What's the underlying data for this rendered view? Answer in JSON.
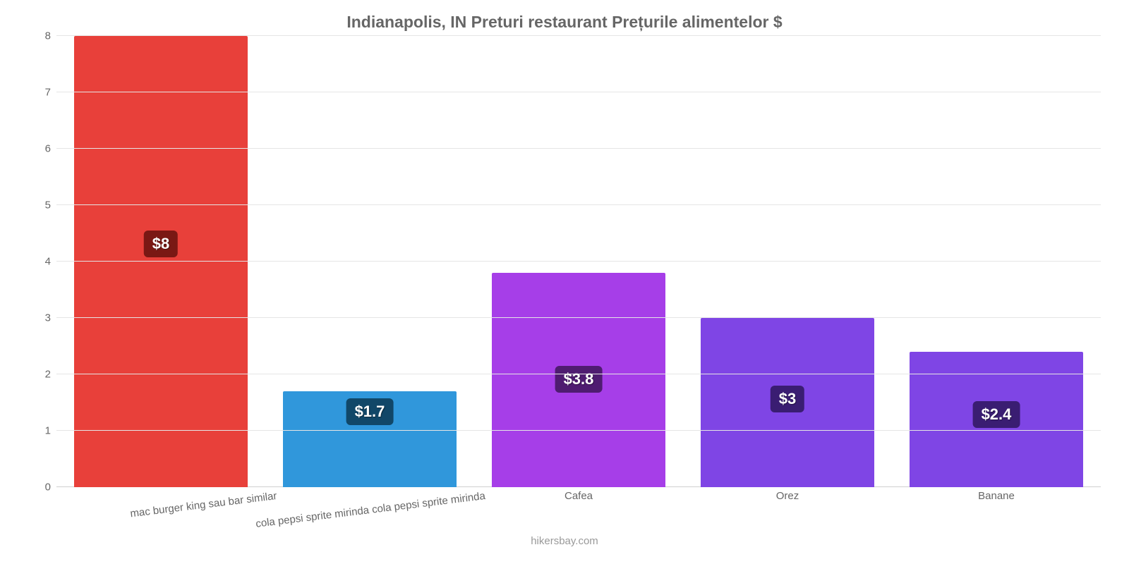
{
  "chart": {
    "type": "bar",
    "title": "Indianapolis, IN Preturi restaurant Prețurile alimentelor $",
    "title_fontsize": 23,
    "title_color": "#666666",
    "background_color": "#ffffff",
    "grid_color": "#e5e5e5",
    "axis_color": "#d0d0d0",
    "ylim_min": 0,
    "ylim_max": 8,
    "ytick_step": 1,
    "ytick_labels": [
      "0",
      "1",
      "2",
      "3",
      "4",
      "5",
      "6",
      "7",
      "8"
    ],
    "ytick_fontsize": 15,
    "x_label_fontsize": 15,
    "x_label_color": "#666666",
    "bar_width_pct": 83,
    "value_label_fontsize": 22,
    "categories": [
      {
        "label": "mac burger king sau bar similar",
        "rotated": true
      },
      {
        "label": "cola pepsi sprite mirinda cola pepsi sprite mirinda",
        "rotated": true
      },
      {
        "label": "Cafea",
        "rotated": false
      },
      {
        "label": "Orez",
        "rotated": false
      },
      {
        "label": "Banane",
        "rotated": false
      }
    ],
    "values": [
      8,
      1.7,
      3.8,
      3,
      2.4
    ],
    "value_labels": [
      "$8",
      "$1.7",
      "$3.8",
      "$3",
      "$2.4"
    ],
    "bar_colors": [
      "#e8403a",
      "#3097db",
      "#a63ee8",
      "#7f45e5",
      "#7f45e5"
    ],
    "label_bg_colors": [
      "#7a1814",
      "#114768",
      "#4f1c71",
      "#3a1d72",
      "#3a1d72"
    ],
    "source": "hikersbay.com",
    "source_fontsize": 15,
    "source_color": "#999999"
  }
}
